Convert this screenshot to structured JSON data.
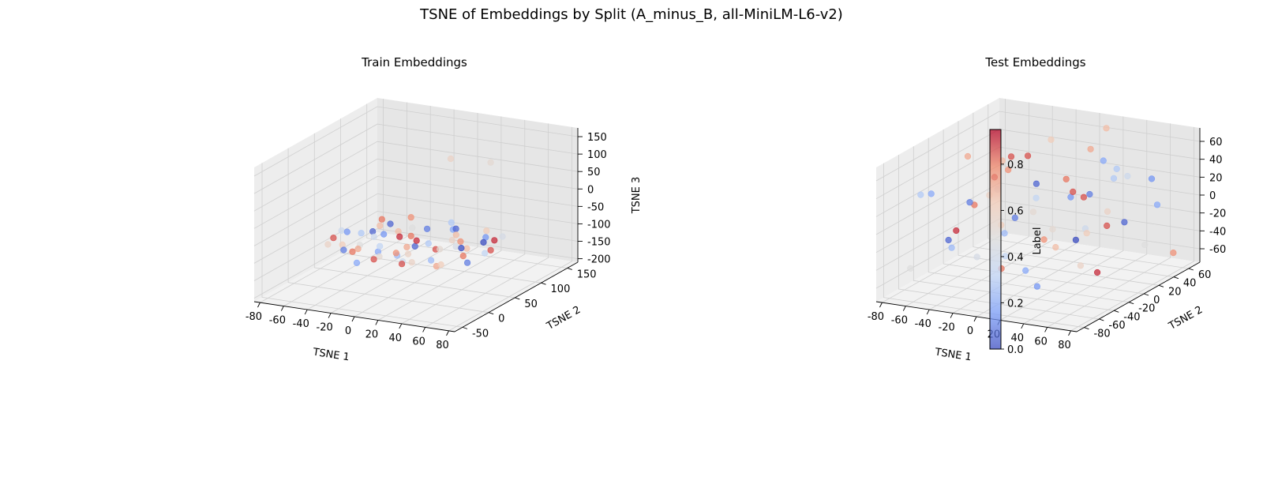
{
  "figure": {
    "title": "TSNE of Embeddings by Split (A_minus_B, all-MiniLM-L6-v2)"
  },
  "colors": {
    "pane_floor": "#f2f2f2",
    "pane_wall_left": "#ededed",
    "pane_wall_back": "#e6e6e6",
    "grid": "#cfcfcf",
    "colormap": "coolwarm"
  },
  "chart_data": [
    {
      "type": "scatter",
      "projection": "3d",
      "title": "Train Embeddings",
      "xlabel": "TSNE 1",
      "ylabel": "TSNE 2",
      "zlabel": "TSNE 3",
      "xlim": [
        -85,
        85
      ],
      "ylim": [
        -65,
        170
      ],
      "zlim": [
        -210,
        175
      ],
      "xticks": [
        -80,
        -60,
        -40,
        -20,
        0,
        20,
        40,
        60,
        80
      ],
      "yticks": [
        -50,
        0,
        50,
        100,
        150
      ],
      "zticks": [
        -200,
        -150,
        -100,
        -50,
        0,
        50,
        100,
        150
      ],
      "grid": true,
      "color_by": "label",
      "points": [
        [
          -60,
          30,
          -95,
          0.9
        ],
        [
          -55,
          45,
          -88,
          0.15
        ],
        [
          -48,
          20,
          -100,
          0.65
        ],
        [
          -40,
          60,
          -92,
          0.05
        ],
        [
          -35,
          10,
          -105,
          0.85
        ],
        [
          -30,
          40,
          -85,
          0.4
        ],
        [
          -25,
          75,
          -97,
          0.7
        ],
        [
          -20,
          25,
          -110,
          0.2
        ],
        [
          -15,
          55,
          -90,
          0.95
        ],
        [
          -10,
          5,
          -102,
          0.55
        ],
        [
          -5,
          85,
          -88,
          0.1
        ],
        [
          0,
          35,
          -95,
          0.75
        ],
        [
          5,
          65,
          -108,
          0.3
        ],
        [
          10,
          15,
          -93,
          0.6
        ],
        [
          15,
          95,
          -86,
          0.05
        ],
        [
          20,
          45,
          -100,
          0.9
        ],
        [
          25,
          25,
          -112,
          0.25
        ],
        [
          30,
          70,
          -94,
          0.8
        ],
        [
          35,
          50,
          -89,
          0.45
        ],
        [
          40,
          10,
          -104,
          0.65
        ],
        [
          45,
          80,
          -97,
          0.0
        ],
        [
          50,
          30,
          -91,
          0.85
        ],
        [
          55,
          60,
          -106,
          0.35
        ],
        [
          -45,
          85,
          -99,
          0.7
        ],
        [
          -38,
          0,
          -93,
          0.1
        ],
        [
          -22,
          95,
          -102,
          0.5
        ],
        [
          -8,
          -10,
          -96,
          0.9
        ],
        [
          8,
          105,
          -100,
          0.2
        ],
        [
          22,
          -5,
          -94,
          0.6
        ],
        [
          38,
          100,
          -103,
          0.15
        ],
        [
          52,
          85,
          -92,
          0.95
        ],
        [
          -52,
          65,
          -107,
          0.3
        ],
        [
          -28,
          5,
          -89,
          0.75
        ],
        [
          -2,
          55,
          -111,
          0.05
        ],
        [
          28,
          35,
          -87,
          0.55
        ],
        [
          -12,
          70,
          -99,
          0.85
        ],
        [
          12,
          0,
          -101,
          0.4
        ],
        [
          42,
          55,
          -95,
          0.7
        ],
        [
          -58,
          15,
          -100,
          0.6
        ],
        [
          58,
          20,
          -98,
          0.1
        ],
        [
          -32,
          115,
          -94,
          0.8
        ],
        [
          0,
          120,
          -97,
          0.3
        ],
        [
          32,
          115,
          -100,
          0.65
        ],
        [
          -18,
          -20,
          -103,
          0.2
        ],
        [
          18,
          -15,
          -92,
          0.9
        ],
        [
          -42,
          40,
          -115,
          0.5
        ],
        [
          44,
          40,
          -80,
          0.0
        ],
        [
          6,
          40,
          -78,
          0.95
        ],
        [
          -6,
          30,
          -118,
          0.25
        ],
        [
          24,
          75,
          -82,
          0.7
        ],
        [
          -24,
          45,
          -79,
          0.15
        ],
        [
          50,
          105,
          -99,
          0.45
        ],
        [
          -50,
          100,
          -96,
          0.85
        ],
        [
          14,
          90,
          -115,
          0.6
        ],
        [
          -14,
          15,
          -83,
          0.35
        ],
        [
          34,
          15,
          -116,
          0.75
        ],
        [
          -34,
          80,
          -84,
          0.05
        ],
        [
          60,
          60,
          -95,
          0.9
        ],
        [
          -62,
          50,
          -92,
          0.4
        ],
        [
          2,
          10,
          -90,
          0.8
        ],
        [
          -5,
          130,
          75,
          0.6
        ],
        [
          20,
          150,
          60,
          0.55
        ]
      ]
    },
    {
      "type": "scatter",
      "projection": "3d",
      "title": "Test Embeddings",
      "xlabel": "TSNE 1",
      "ylabel": "TSNE 2",
      "zlabel": "",
      "xlim": [
        -85,
        85
      ],
      "ylim": [
        -90,
        75
      ],
      "zlim": [
        -75,
        75
      ],
      "xticks": [
        -80,
        -60,
        -40,
        -20,
        0,
        20,
        40,
        60,
        80
      ],
      "yticks": [
        -80,
        -60,
        -40,
        -20,
        0,
        20,
        40,
        60
      ],
      "zticks": [
        -60,
        -40,
        -20,
        0,
        20,
        40,
        60
      ],
      "grid": true,
      "color_by": "label",
      "points": [
        [
          -70,
          -40,
          25,
          0.2
        ],
        [
          -65,
          10,
          -10,
          0.85
        ],
        [
          -60,
          -70,
          40,
          0.3
        ],
        [
          -55,
          30,
          -40,
          0.65
        ],
        [
          -50,
          -20,
          10,
          0.1
        ],
        [
          -45,
          50,
          30,
          0.9
        ],
        [
          -40,
          -60,
          -20,
          0.25
        ],
        [
          -35,
          0,
          50,
          0.7
        ],
        [
          -30,
          -80,
          0,
          0.05
        ],
        [
          -25,
          40,
          -55,
          0.8
        ],
        [
          -20,
          -30,
          35,
          0.45
        ],
        [
          -15,
          60,
          -15,
          0.15
        ],
        [
          -10,
          -50,
          60,
          0.95
        ],
        [
          -5,
          20,
          -30,
          0.55
        ],
        [
          0,
          -10,
          20,
          0.35
        ],
        [
          5,
          55,
          45,
          0.75
        ],
        [
          10,
          -40,
          -45,
          0.2
        ],
        [
          15,
          30,
          5,
          0.9
        ],
        [
          20,
          -70,
          30,
          0.1
        ],
        [
          25,
          10,
          -60,
          0.6
        ],
        [
          30,
          65,
          15,
          0.4
        ],
        [
          35,
          -25,
          55,
          0.85
        ],
        [
          40,
          45,
          -25,
          0.05
        ],
        [
          45,
          -55,
          -5,
          0.7
        ],
        [
          50,
          15,
          40,
          0.3
        ],
        [
          55,
          -15,
          -50,
          0.95
        ],
        [
          60,
          50,
          25,
          0.15
        ],
        [
          65,
          -45,
          10,
          0.65
        ],
        [
          70,
          25,
          -35,
          0.5
        ],
        [
          -68,
          60,
          5,
          0.8
        ],
        [
          -42,
          15,
          -65,
          0.35
        ],
        [
          -18,
          -15,
          65,
          0.9
        ],
        [
          8,
          -65,
          8,
          0.25
        ],
        [
          32,
          35,
          -10,
          0.6
        ],
        [
          58,
          -30,
          45,
          0.1
        ],
        [
          -58,
          -10,
          55,
          0.75
        ],
        [
          -28,
          -45,
          -35,
          0.45
        ],
        [
          2,
          40,
          -50,
          0.0
        ],
        [
          28,
          -5,
          30,
          0.9
        ],
        [
          52,
          70,
          -15,
          0.2
        ],
        [
          -12,
          5,
          -5,
          0.55
        ],
        [
          18,
          -85,
          -20,
          0.85
        ],
        [
          62,
          0,
          60,
          0.3
        ],
        [
          -38,
          70,
          40,
          0.65
        ],
        [
          42,
          -75,
          -40,
          0.15
        ],
        [
          -75,
          -60,
          -50,
          0.5
        ],
        [
          72,
          60,
          -60,
          0.8
        ],
        [
          -22,
          25,
          15,
          0.05
        ],
        [
          12,
          65,
          65,
          0.7
        ],
        [
          48,
          -20,
          0,
          0.4
        ],
        [
          -52,
          -35,
          -15,
          0.95
        ],
        [
          38,
          20,
          55,
          0.2
        ],
        [
          -8,
          -60,
          45,
          0.6
        ],
        [
          22,
          50,
          -35,
          0.9
        ]
      ]
    }
  ],
  "colorbar": {
    "label": "Label",
    "min": 0,
    "max": 0.95,
    "ticks": [
      "0.0",
      "0.2",
      "0.4",
      "0.6",
      "0.8"
    ],
    "tick_values": [
      0,
      0.2,
      0.4,
      0.6,
      0.8
    ]
  }
}
